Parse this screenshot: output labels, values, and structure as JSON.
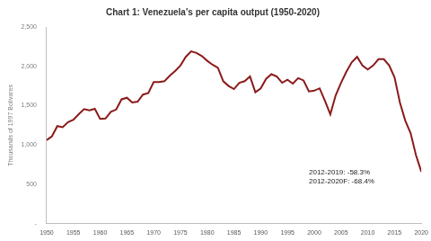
{
  "chart_data": {
    "type": "line",
    "title": "Chart 1: Venezuela's per capita output (1950-2020)",
    "ylabel": "Thousands of 1997 Bolivares",
    "annotations": [
      "2012-2019: -58.3%",
      "2012-2020F: -68.4%"
    ],
    "x": [
      1950,
      1951,
      1952,
      1953,
      1954,
      1955,
      1956,
      1957,
      1958,
      1959,
      1960,
      1961,
      1962,
      1963,
      1964,
      1965,
      1966,
      1967,
      1968,
      1969,
      1970,
      1971,
      1972,
      1973,
      1974,
      1975,
      1976,
      1977,
      1978,
      1979,
      1980,
      1981,
      1982,
      1983,
      1984,
      1985,
      1986,
      1987,
      1988,
      1989,
      1990,
      1991,
      1992,
      1993,
      1994,
      1995,
      1996,
      1997,
      1998,
      1999,
      2000,
      2001,
      2002,
      2003,
      2004,
      2005,
      2006,
      2007,
      2008,
      2009,
      2010,
      2011,
      2012,
      2013,
      2014,
      2015,
      2016,
      2017,
      2018,
      2019,
      2020
    ],
    "values": [
      1060,
      1110,
      1240,
      1225,
      1290,
      1320,
      1390,
      1455,
      1440,
      1460,
      1330,
      1335,
      1420,
      1450,
      1580,
      1600,
      1540,
      1550,
      1640,
      1660,
      1800,
      1800,
      1810,
      1880,
      1940,
      2010,
      2120,
      2190,
      2170,
      2130,
      2070,
      2020,
      1980,
      1810,
      1750,
      1710,
      1790,
      1810,
      1870,
      1670,
      1720,
      1840,
      1900,
      1870,
      1790,
      1830,
      1780,
      1850,
      1820,
      1680,
      1690,
      1720,
      1560,
      1390,
      1630,
      1790,
      1930,
      2050,
      2120,
      2010,
      1960,
      2010,
      2090,
      2090,
      2010,
      1860,
      1540,
      1310,
      1150,
      870,
      660
    ],
    "color": "#8b1a1a",
    "xlim": [
      1950,
      2020
    ],
    "xticks": [
      1950,
      1955,
      1960,
      1965,
      1970,
      1975,
      1980,
      1985,
      1990,
      1995,
      2000,
      2005,
      2010,
      2015,
      2020
    ],
    "ylim": [
      0,
      2500
    ],
    "yticks": [
      {
        "value": 0,
        "label": "-"
      },
      500,
      {
        "value": 1000,
        "label": "1,000"
      },
      {
        "value": 1500,
        "label": "1,500"
      },
      {
        "value": 2000,
        "label": "2,000"
      },
      {
        "value": 2500,
        "label": "2,500"
      }
    ],
    "grid": false
  }
}
